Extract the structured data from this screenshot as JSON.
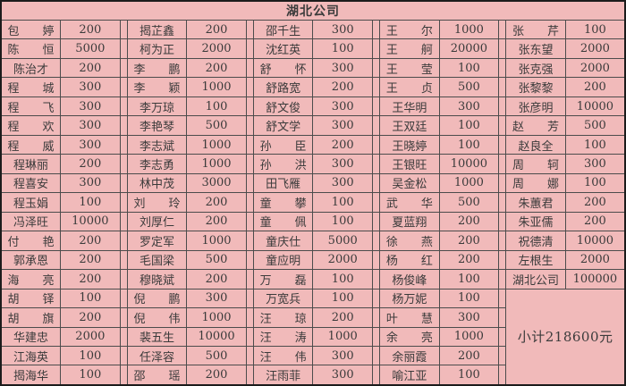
{
  "table": {
    "header": "湖北公司",
    "subtotal": "小计218600元",
    "column_pairs": [
      {
        "entries": [
          {
            "name": "包婷",
            "amount": 200
          },
          {
            "name": "陈恒",
            "amount": 5000
          },
          {
            "name": "陈治才",
            "amount": 200
          },
          {
            "name": "程城",
            "amount": 300
          },
          {
            "name": "程飞",
            "amount": 300
          },
          {
            "name": "程欢",
            "amount": 300
          },
          {
            "name": "程威",
            "amount": 300
          },
          {
            "name": "程琳丽",
            "amount": 200
          },
          {
            "name": "程喜安",
            "amount": 300
          },
          {
            "name": "程玉娟",
            "amount": 100
          },
          {
            "name": "冯泽旺",
            "amount": 10000
          },
          {
            "name": "付艳",
            "amount": 200
          },
          {
            "name": "郭承恩",
            "amount": 200
          },
          {
            "name": "海亮",
            "amount": 200
          },
          {
            "name": "胡铎",
            "amount": 100
          },
          {
            "name": "胡旗",
            "amount": 200
          },
          {
            "name": "华建忠",
            "amount": 2000
          },
          {
            "name": "江海英",
            "amount": 100
          },
          {
            "name": "揭海华",
            "amount": 100
          }
        ]
      },
      {
        "entries": [
          {
            "name": "揭芷鑫",
            "amount": 200
          },
          {
            "name": "柯为正",
            "amount": 2000
          },
          {
            "name": "李鹏",
            "amount": 200
          },
          {
            "name": "李颖",
            "amount": 1000
          },
          {
            "name": "李万琼",
            "amount": 100
          },
          {
            "name": "李艳琴",
            "amount": 500
          },
          {
            "name": "李志斌",
            "amount": 1000
          },
          {
            "name": "李志勇",
            "amount": 1000
          },
          {
            "name": "林中茂",
            "amount": 3000
          },
          {
            "name": "刘玲",
            "amount": 200
          },
          {
            "name": "刘厚仁",
            "amount": 200
          },
          {
            "name": "罗定军",
            "amount": 1000
          },
          {
            "name": "毛国梁",
            "amount": 500
          },
          {
            "name": "穆晓斌",
            "amount": 200
          },
          {
            "name": "倪鹏",
            "amount": 300
          },
          {
            "name": "倪伟",
            "amount": 1000
          },
          {
            "name": "裴五生",
            "amount": 10000
          },
          {
            "name": "任泽容",
            "amount": 500
          },
          {
            "name": "邵瑶",
            "amount": 200
          }
        ]
      },
      {
        "entries": [
          {
            "name": "邵千生",
            "amount": 300
          },
          {
            "name": "沈红英",
            "amount": 100
          },
          {
            "name": "舒怀",
            "amount": 300
          },
          {
            "name": "舒路宽",
            "amount": 200
          },
          {
            "name": "舒文俊",
            "amount": 300
          },
          {
            "name": "舒文学",
            "amount": 300
          },
          {
            "name": "孙臣",
            "amount": 200
          },
          {
            "name": "孙洪",
            "amount": 300
          },
          {
            "name": "田飞雁",
            "amount": 300
          },
          {
            "name": "童攀",
            "amount": 100
          },
          {
            "name": "童佩",
            "amount": 100
          },
          {
            "name": "童庆仕",
            "amount": 5000
          },
          {
            "name": "童应明",
            "amount": 2000
          },
          {
            "name": "万磊",
            "amount": 100
          },
          {
            "name": "万宽兵",
            "amount": 100
          },
          {
            "name": "汪琼",
            "amount": 200
          },
          {
            "name": "汪涛",
            "amount": 1000
          },
          {
            "name": "汪伟",
            "amount": 300
          },
          {
            "name": "汪雨菲",
            "amount": 300
          }
        ]
      },
      {
        "entries": [
          {
            "name": "王尔",
            "amount": 1000
          },
          {
            "name": "王舸",
            "amount": 20000
          },
          {
            "name": "王莹",
            "amount": 100
          },
          {
            "name": "王贞",
            "amount": 500
          },
          {
            "name": "王华明",
            "amount": 300
          },
          {
            "name": "王双廷",
            "amount": 100
          },
          {
            "name": "王晓婷",
            "amount": 100
          },
          {
            "name": "王银旺",
            "amount": 10000
          },
          {
            "name": "吴金松",
            "amount": 1000
          },
          {
            "name": "武华",
            "amount": 500
          },
          {
            "name": "夏蓝翔",
            "amount": 200
          },
          {
            "name": "徐燕",
            "amount": 200
          },
          {
            "name": "杨红",
            "amount": 200
          },
          {
            "name": "杨俊峰",
            "amount": 100
          },
          {
            "name": "杨万妮",
            "amount": 100
          },
          {
            "name": "叶慧",
            "amount": 300
          },
          {
            "name": "余亮",
            "amount": 1000
          },
          {
            "name": "余丽霞",
            "amount": 200
          },
          {
            "name": "喻江亚",
            "amount": 100
          }
        ]
      },
      {
        "entries": [
          {
            "name": "张芹",
            "amount": 100
          },
          {
            "name": "张东望",
            "amount": 2000
          },
          {
            "name": "张克强",
            "amount": 2000
          },
          {
            "name": "张黎黎",
            "amount": 200
          },
          {
            "name": "张彦明",
            "amount": 10000
          },
          {
            "name": "赵芳",
            "amount": 500
          },
          {
            "name": "赵良全",
            "amount": 100
          },
          {
            "name": "周轲",
            "amount": 300
          },
          {
            "name": "周娜",
            "amount": 100
          },
          {
            "name": "朱蕙君",
            "amount": 200
          },
          {
            "name": "朱亚儒",
            "amount": 200
          },
          {
            "name": "祝德清",
            "amount": 10000
          },
          {
            "name": "左根生",
            "amount": 2000
          },
          {
            "name": "湖北公司",
            "amount": 100000
          }
        ]
      }
    ],
    "row_count": 19,
    "subtotal_merge_rows": 5
  },
  "colors": {
    "cell_background": "#f1baba",
    "grid_line": "#4c4c4c",
    "outer_border": "#1c1c1c",
    "text": "#3b3b3b"
  }
}
